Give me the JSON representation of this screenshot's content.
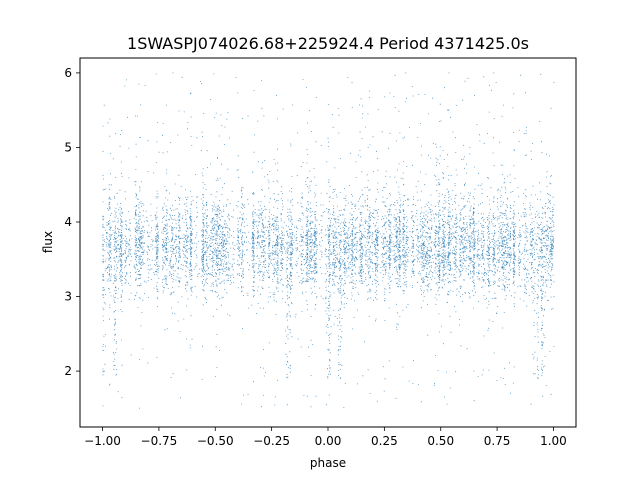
{
  "chart_data": {
    "type": "scatter",
    "title": "1SWASPJ074026.68+225924.4 Period 4371425.0s",
    "xlabel": "phase",
    "ylabel": "flux",
    "xlim": [
      -1.1,
      1.1
    ],
    "ylim": [
      1.25,
      6.2
    ],
    "xticks": [
      -1.0,
      -0.75,
      -0.5,
      -0.25,
      0.0,
      0.25,
      0.5,
      0.75,
      1.0
    ],
    "xtick_labels": [
      "−1.00",
      "−0.75",
      "−0.50",
      "−0.25",
      "0.00",
      "0.25",
      "0.50",
      "0.75",
      "1.00"
    ],
    "yticks": [
      2,
      3,
      4,
      5,
      6
    ],
    "ytick_labels": [
      "2",
      "3",
      "4",
      "5",
      "6"
    ],
    "grid": false,
    "marker_color": "#1f77b4",
    "series": [
      {
        "phase_range": [
          -1.0,
          1.0
        ],
        "flux_core_range": [
          3.3,
          4.0
        ],
        "flux_range": [
          1.5,
          6.0
        ],
        "dip_phases": [
          -1.0,
          -0.95,
          -0.18,
          0.0,
          0.05,
          0.92,
          0.95
        ],
        "dip_min_flux": 1.9,
        "stripe_spacing_phase": 0.02
      }
    ]
  }
}
